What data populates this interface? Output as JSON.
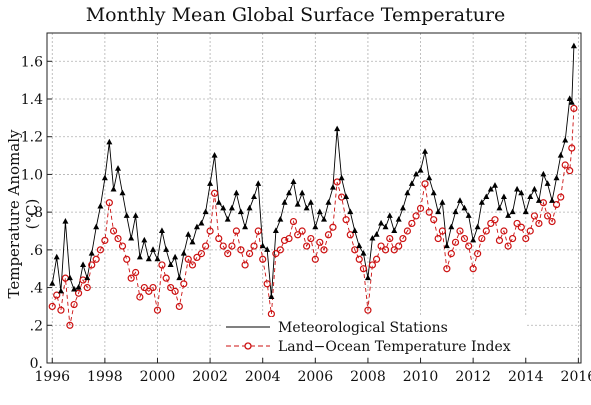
{
  "chart_data": {
    "type": "line",
    "title": "Monthly Mean Global Surface Temperature",
    "xlabel": "",
    "ylabel": "Temperature Anomaly (°C)",
    "xlim": [
      1995.8,
      2016.1
    ],
    "ylim": [
      0.0,
      1.75
    ],
    "x_ticks": [
      1996,
      1998,
      2000,
      2002,
      2004,
      2006,
      2008,
      2010,
      2012,
      2014,
      2016
    ],
    "x_tick_labels": [
      "1996",
      "1998",
      "2000",
      "2002",
      "2004",
      "2006",
      "2008",
      "2010",
      "2012",
      "2014",
      "2016"
    ],
    "y_ticks": [
      0.0,
      0.2,
      0.4,
      0.6,
      0.8,
      1.0,
      1.2,
      1.4,
      1.6
    ],
    "y_tick_labels": [
      "0.",
      ".2",
      ".4",
      ".6",
      ".8",
      "1.0",
      "1.2",
      "1.4",
      "1.6"
    ],
    "grid": true,
    "legend_position": "bottom-right",
    "series": [
      {
        "name": "Meteorological Stations",
        "marker": "triangle",
        "color": "#000000",
        "line_style": "solid",
        "points": [
          [
            1996.0,
            0.42
          ],
          [
            1996.17,
            0.56
          ],
          [
            1996.33,
            0.38
          ],
          [
            1996.5,
            0.75
          ],
          [
            1996.67,
            0.45
          ],
          [
            1996.83,
            0.39
          ],
          [
            1997.0,
            0.4
          ],
          [
            1997.17,
            0.52
          ],
          [
            1997.33,
            0.45
          ],
          [
            1997.5,
            0.58
          ],
          [
            1997.67,
            0.72
          ],
          [
            1997.83,
            0.83
          ],
          [
            1998.0,
            0.98
          ],
          [
            1998.17,
            1.17
          ],
          [
            1998.33,
            0.92
          ],
          [
            1998.5,
            1.03
          ],
          [
            1998.67,
            0.9
          ],
          [
            1998.83,
            0.78
          ],
          [
            1999.0,
            0.66
          ],
          [
            1999.17,
            0.78
          ],
          [
            1999.33,
            0.56
          ],
          [
            1999.5,
            0.65
          ],
          [
            1999.67,
            0.55
          ],
          [
            1999.83,
            0.6
          ],
          [
            2000.0,
            0.55
          ],
          [
            2000.17,
            0.7
          ],
          [
            2000.33,
            0.6
          ],
          [
            2000.5,
            0.52
          ],
          [
            2000.67,
            0.56
          ],
          [
            2000.83,
            0.45
          ],
          [
            2001.0,
            0.58
          ],
          [
            2001.17,
            0.68
          ],
          [
            2001.33,
            0.64
          ],
          [
            2001.5,
            0.72
          ],
          [
            2001.67,
            0.74
          ],
          [
            2001.83,
            0.8
          ],
          [
            2002.0,
            0.95
          ],
          [
            2002.17,
            1.1
          ],
          [
            2002.33,
            0.85
          ],
          [
            2002.5,
            0.82
          ],
          [
            2002.67,
            0.76
          ],
          [
            2002.83,
            0.82
          ],
          [
            2003.0,
            0.9
          ],
          [
            2003.17,
            0.8
          ],
          [
            2003.33,
            0.72
          ],
          [
            2003.5,
            0.82
          ],
          [
            2003.67,
            0.88
          ],
          [
            2003.83,
            0.95
          ],
          [
            2004.0,
            0.62
          ],
          [
            2004.17,
            0.6
          ],
          [
            2004.33,
            0.35
          ],
          [
            2004.5,
            0.7
          ],
          [
            2004.67,
            0.76
          ],
          [
            2004.83,
            0.85
          ],
          [
            2005.0,
            0.9
          ],
          [
            2005.17,
            0.96
          ],
          [
            2005.33,
            0.84
          ],
          [
            2005.5,
            0.9
          ],
          [
            2005.67,
            0.82
          ],
          [
            2005.83,
            0.85
          ],
          [
            2006.0,
            0.72
          ],
          [
            2006.17,
            0.8
          ],
          [
            2006.33,
            0.76
          ],
          [
            2006.5,
            0.85
          ],
          [
            2006.67,
            0.93
          ],
          [
            2006.83,
            1.24
          ],
          [
            2007.0,
            0.98
          ],
          [
            2007.17,
            0.88
          ],
          [
            2007.33,
            0.8
          ],
          [
            2007.5,
            0.7
          ],
          [
            2007.67,
            0.62
          ],
          [
            2007.83,
            0.58
          ],
          [
            2008.0,
            0.45
          ],
          [
            2008.17,
            0.66
          ],
          [
            2008.33,
            0.68
          ],
          [
            2008.5,
            0.74
          ],
          [
            2008.67,
            0.72
          ],
          [
            2008.83,
            0.78
          ],
          [
            2009.0,
            0.7
          ],
          [
            2009.17,
            0.76
          ],
          [
            2009.33,
            0.82
          ],
          [
            2009.5,
            0.9
          ],
          [
            2009.67,
            0.95
          ],
          [
            2009.83,
            1.0
          ],
          [
            2010.0,
            1.02
          ],
          [
            2010.17,
            1.12
          ],
          [
            2010.33,
            0.98
          ],
          [
            2010.5,
            0.9
          ],
          [
            2010.67,
            0.8
          ],
          [
            2010.83,
            0.85
          ],
          [
            2011.0,
            0.62
          ],
          [
            2011.17,
            0.72
          ],
          [
            2011.33,
            0.8
          ],
          [
            2011.5,
            0.86
          ],
          [
            2011.67,
            0.82
          ],
          [
            2011.83,
            0.78
          ],
          [
            2012.0,
            0.65
          ],
          [
            2012.17,
            0.72
          ],
          [
            2012.33,
            0.85
          ],
          [
            2012.5,
            0.88
          ],
          [
            2012.67,
            0.92
          ],
          [
            2012.83,
            0.94
          ],
          [
            2013.0,
            0.82
          ],
          [
            2013.17,
            0.88
          ],
          [
            2013.33,
            0.78
          ],
          [
            2013.5,
            0.8
          ],
          [
            2013.67,
            0.92
          ],
          [
            2013.83,
            0.9
          ],
          [
            2014.0,
            0.8
          ],
          [
            2014.17,
            0.88
          ],
          [
            2014.33,
            0.92
          ],
          [
            2014.5,
            0.86
          ],
          [
            2014.67,
            1.0
          ],
          [
            2014.83,
            0.95
          ],
          [
            2015.0,
            0.86
          ],
          [
            2015.17,
            0.98
          ],
          [
            2015.33,
            1.1
          ],
          [
            2015.5,
            1.18
          ],
          [
            2015.67,
            1.4
          ],
          [
            2015.75,
            1.38
          ],
          [
            2015.83,
            1.68
          ]
        ]
      },
      {
        "name": "Land−Ocean Temperature Index",
        "marker": "open-circle",
        "color": "#cc1111",
        "line_style": "dashed",
        "points": [
          [
            1996.0,
            0.3
          ],
          [
            1996.17,
            0.36
          ],
          [
            1996.33,
            0.28
          ],
          [
            1996.5,
            0.45
          ],
          [
            1996.67,
            0.2
          ],
          [
            1996.83,
            0.31
          ],
          [
            1997.0,
            0.37
          ],
          [
            1997.17,
            0.44
          ],
          [
            1997.33,
            0.4
          ],
          [
            1997.5,
            0.52
          ],
          [
            1997.67,
            0.55
          ],
          [
            1997.83,
            0.6
          ],
          [
            1998.0,
            0.65
          ],
          [
            1998.17,
            0.85
          ],
          [
            1998.33,
            0.7
          ],
          [
            1998.5,
            0.66
          ],
          [
            1998.67,
            0.62
          ],
          [
            1998.83,
            0.55
          ],
          [
            1999.0,
            0.45
          ],
          [
            1999.17,
            0.48
          ],
          [
            1999.33,
            0.35
          ],
          [
            1999.5,
            0.4
          ],
          [
            1999.67,
            0.38
          ],
          [
            1999.83,
            0.4
          ],
          [
            2000.0,
            0.28
          ],
          [
            2000.17,
            0.52
          ],
          [
            2000.33,
            0.45
          ],
          [
            2000.5,
            0.4
          ],
          [
            2000.67,
            0.38
          ],
          [
            2000.83,
            0.3
          ],
          [
            2001.0,
            0.42
          ],
          [
            2001.17,
            0.55
          ],
          [
            2001.33,
            0.52
          ],
          [
            2001.5,
            0.56
          ],
          [
            2001.67,
            0.58
          ],
          [
            2001.83,
            0.62
          ],
          [
            2002.0,
            0.7
          ],
          [
            2002.17,
            0.9
          ],
          [
            2002.33,
            0.66
          ],
          [
            2002.5,
            0.62
          ],
          [
            2002.67,
            0.58
          ],
          [
            2002.83,
            0.62
          ],
          [
            2003.0,
            0.7
          ],
          [
            2003.17,
            0.6
          ],
          [
            2003.33,
            0.52
          ],
          [
            2003.5,
            0.58
          ],
          [
            2003.67,
            0.62
          ],
          [
            2003.83,
            0.7
          ],
          [
            2004.0,
            0.55
          ],
          [
            2004.17,
            0.42
          ],
          [
            2004.33,
            0.26
          ],
          [
            2004.5,
            0.58
          ],
          [
            2004.67,
            0.6
          ],
          [
            2004.83,
            0.65
          ],
          [
            2005.0,
            0.66
          ],
          [
            2005.17,
            0.75
          ],
          [
            2005.33,
            0.68
          ],
          [
            2005.5,
            0.7
          ],
          [
            2005.67,
            0.62
          ],
          [
            2005.83,
            0.66
          ],
          [
            2006.0,
            0.55
          ],
          [
            2006.17,
            0.64
          ],
          [
            2006.33,
            0.6
          ],
          [
            2006.5,
            0.68
          ],
          [
            2006.67,
            0.72
          ],
          [
            2006.83,
            0.96
          ],
          [
            2007.0,
            0.88
          ],
          [
            2007.17,
            0.76
          ],
          [
            2007.33,
            0.68
          ],
          [
            2007.5,
            0.6
          ],
          [
            2007.67,
            0.55
          ],
          [
            2007.83,
            0.5
          ],
          [
            2008.0,
            0.28
          ],
          [
            2008.17,
            0.52
          ],
          [
            2008.33,
            0.55
          ],
          [
            2008.5,
            0.62
          ],
          [
            2008.67,
            0.6
          ],
          [
            2008.83,
            0.66
          ],
          [
            2009.0,
            0.6
          ],
          [
            2009.17,
            0.62
          ],
          [
            2009.33,
            0.66
          ],
          [
            2009.5,
            0.7
          ],
          [
            2009.67,
            0.74
          ],
          [
            2009.83,
            0.78
          ],
          [
            2010.0,
            0.82
          ],
          [
            2010.17,
            0.95
          ],
          [
            2010.33,
            0.8
          ],
          [
            2010.5,
            0.76
          ],
          [
            2010.67,
            0.66
          ],
          [
            2010.83,
            0.7
          ],
          [
            2011.0,
            0.5
          ],
          [
            2011.17,
            0.58
          ],
          [
            2011.33,
            0.64
          ],
          [
            2011.5,
            0.7
          ],
          [
            2011.67,
            0.66
          ],
          [
            2011.83,
            0.62
          ],
          [
            2012.0,
            0.5
          ],
          [
            2012.17,
            0.58
          ],
          [
            2012.33,
            0.66
          ],
          [
            2012.5,
            0.7
          ],
          [
            2012.67,
            0.74
          ],
          [
            2012.83,
            0.76
          ],
          [
            2013.0,
            0.65
          ],
          [
            2013.17,
            0.7
          ],
          [
            2013.33,
            0.62
          ],
          [
            2013.5,
            0.66
          ],
          [
            2013.67,
            0.74
          ],
          [
            2013.83,
            0.72
          ],
          [
            2014.0,
            0.66
          ],
          [
            2014.17,
            0.7
          ],
          [
            2014.33,
            0.78
          ],
          [
            2014.5,
            0.74
          ],
          [
            2014.67,
            0.85
          ],
          [
            2014.83,
            0.78
          ],
          [
            2015.0,
            0.75
          ],
          [
            2015.17,
            0.84
          ],
          [
            2015.33,
            0.88
          ],
          [
            2015.5,
            1.05
          ],
          [
            2015.67,
            1.02
          ],
          [
            2015.75,
            1.14
          ],
          [
            2015.83,
            1.35
          ]
        ]
      }
    ]
  }
}
